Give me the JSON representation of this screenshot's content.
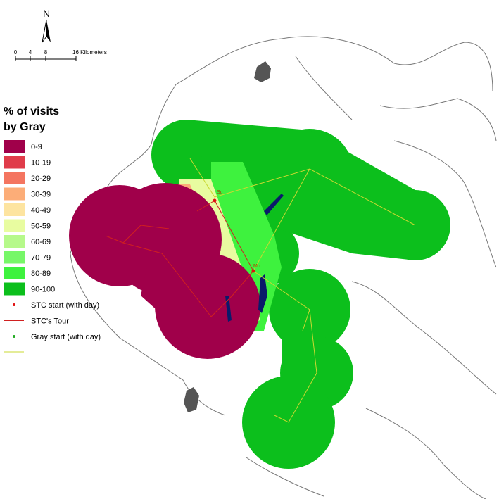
{
  "north_arrow": {
    "label": "N"
  },
  "scale_bar": {
    "labels": [
      "0",
      "4",
      "8",
      "16 Kilometers"
    ]
  },
  "legend": {
    "title": [
      "% of visits",
      "by Gray"
    ],
    "classes": [
      {
        "label": "0-9",
        "color": "#a0004a"
      },
      {
        "label": "10-19",
        "color": "#e03c4a"
      },
      {
        "label": "20-29",
        "color": "#f47560"
      },
      {
        "label": "30-39",
        "color": "#fcad78"
      },
      {
        "label": "40-49",
        "color": "#fde4a0"
      },
      {
        "label": "50-59",
        "color": "#e8fca0"
      },
      {
        "label": "60-69",
        "color": "#b6f98a"
      },
      {
        "label": "70-79",
        "color": "#77f768"
      },
      {
        "label": "80-89",
        "color": "#3ef23e"
      },
      {
        "label": "90-100",
        "color": "#0cbf1c"
      }
    ],
    "symbols": [
      {
        "label": "STC start (with day)",
        "color": "#e01010",
        "kind": "point"
      },
      {
        "label": "STC's Tour",
        "color": "#d02020",
        "kind": "line"
      },
      {
        "label": "Gray start (with day)",
        "color": "#22aa22",
        "kind": "point"
      }
    ]
  },
  "map": {
    "places": [
      "Su",
      "Mo"
    ]
  }
}
